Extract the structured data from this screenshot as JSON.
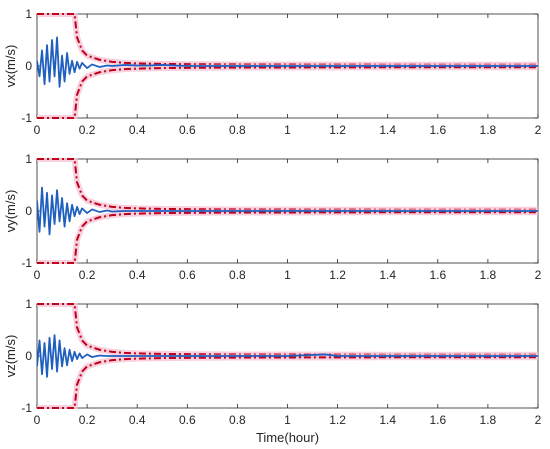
{
  "chart_data": [
    {
      "type": "line",
      "ylabel": "vx(m/s)",
      "xlabel": "",
      "xlim": [
        0,
        2
      ],
      "ylim": [
        -1,
        1
      ],
      "xticks": [
        "0",
        "0.2",
        "0.4",
        "0.6",
        "0.8",
        "1",
        "1.2",
        "1.4",
        "1.6",
        "1.8",
        "2"
      ],
      "yticks": [
        "-1",
        "0",
        "1"
      ],
      "grid": false,
      "series": [
        {
          "role": "error",
          "color": "#1f5fbf",
          "x": [
            0,
            0.01,
            0.02,
            0.03,
            0.04,
            0.05,
            0.06,
            0.07,
            0.08,
            0.09,
            0.1,
            0.11,
            0.12,
            0.13,
            0.14,
            0.15,
            0.16,
            0.17,
            0.18,
            0.2,
            0.22,
            0.25,
            0.28,
            0.3,
            0.35,
            0.4,
            0.45,
            0.5,
            0.55,
            0.6,
            0.8,
            1.0,
            1.2,
            1.4,
            1.6,
            1.8,
            2.0
          ],
          "y": [
            0.1,
            -0.2,
            0.3,
            -0.35,
            0.4,
            -0.3,
            0.5,
            -0.2,
            0.55,
            -0.4,
            0.2,
            -0.3,
            0.25,
            -0.15,
            0.1,
            -0.12,
            0.08,
            -0.05,
            0.06,
            -0.04,
            0.03,
            -0.02,
            0.01,
            0.0,
            0.02,
            0.01,
            0.01,
            0.02,
            0.01,
            0.0,
            0.0,
            0.0,
            0.0,
            0.0,
            0.0,
            0.0,
            0.0
          ]
        },
        {
          "role": "upper-bound",
          "color": "#c0001a",
          "x": [
            0,
            0.15,
            0.16,
            0.18,
            0.2,
            0.25,
            0.3,
            0.35,
            0.4,
            0.5,
            0.6,
            0.8,
            1.0,
            1.2,
            1.4,
            1.6,
            1.8,
            2.0
          ],
          "y": [
            1,
            1,
            0.55,
            0.3,
            0.2,
            0.12,
            0.08,
            0.06,
            0.05,
            0.04,
            0.035,
            0.03,
            0.028,
            0.026,
            0.025,
            0.025,
            0.024,
            0.024
          ]
        },
        {
          "role": "lower-bound",
          "color": "#c0001a",
          "x": [
            0,
            0.15,
            0.16,
            0.18,
            0.2,
            0.25,
            0.3,
            0.35,
            0.4,
            0.5,
            0.6,
            0.8,
            1.0,
            1.2,
            1.4,
            1.6,
            1.8,
            2.0
          ],
          "y": [
            -1,
            -1,
            -0.55,
            -0.3,
            -0.2,
            -0.12,
            -0.08,
            -0.06,
            -0.05,
            -0.04,
            -0.035,
            -0.03,
            -0.028,
            -0.026,
            -0.025,
            -0.025,
            -0.024,
            -0.024
          ]
        }
      ]
    },
    {
      "type": "line",
      "ylabel": "vy(m/s)",
      "xlabel": "",
      "xlim": [
        0,
        2
      ],
      "ylim": [
        -1,
        1
      ],
      "xticks": [
        "0",
        "0.2",
        "0.4",
        "0.6",
        "0.8",
        "1",
        "1.2",
        "1.4",
        "1.6",
        "1.8",
        "2"
      ],
      "yticks": [
        "-1",
        "0",
        "1"
      ],
      "grid": false,
      "series": [
        {
          "role": "error",
          "color": "#1f5fbf",
          "x": [
            0,
            0.01,
            0.02,
            0.03,
            0.04,
            0.05,
            0.06,
            0.07,
            0.08,
            0.09,
            0.1,
            0.11,
            0.12,
            0.13,
            0.14,
            0.15,
            0.16,
            0.17,
            0.18,
            0.2,
            0.22,
            0.25,
            0.28,
            0.3,
            0.35,
            0.4,
            0.5,
            0.6,
            0.8,
            1.0,
            1.2,
            1.4,
            1.6,
            1.8,
            2.0
          ],
          "y": [
            0.2,
            -0.4,
            0.45,
            -0.3,
            0.35,
            -0.45,
            0.3,
            -0.25,
            0.4,
            -0.2,
            0.25,
            -0.3,
            0.15,
            -0.2,
            0.12,
            -0.1,
            0.08,
            -0.06,
            0.05,
            -0.04,
            0.03,
            -0.02,
            0.01,
            -0.01,
            0.0,
            0.0,
            0.0,
            0.0,
            0.0,
            0.0,
            0.0,
            0.0,
            0.0,
            0.0,
            0.0
          ]
        },
        {
          "role": "upper-bound",
          "color": "#c0001a",
          "x": [
            0,
            0.15,
            0.16,
            0.18,
            0.2,
            0.25,
            0.3,
            0.35,
            0.4,
            0.5,
            0.6,
            0.8,
            1.0,
            1.2,
            1.4,
            1.6,
            1.8,
            2.0
          ],
          "y": [
            1,
            1,
            0.55,
            0.3,
            0.2,
            0.12,
            0.08,
            0.06,
            0.05,
            0.04,
            0.035,
            0.03,
            0.028,
            0.026,
            0.025,
            0.025,
            0.024,
            0.024
          ]
        },
        {
          "role": "lower-bound",
          "color": "#c0001a",
          "x": [
            0,
            0.15,
            0.16,
            0.18,
            0.2,
            0.25,
            0.3,
            0.35,
            0.4,
            0.5,
            0.6,
            0.8,
            1.0,
            1.2,
            1.4,
            1.6,
            1.8,
            2.0
          ],
          "y": [
            -1,
            -1,
            -0.55,
            -0.3,
            -0.2,
            -0.12,
            -0.08,
            -0.06,
            -0.05,
            -0.04,
            -0.035,
            -0.03,
            -0.028,
            -0.026,
            -0.025,
            -0.025,
            -0.024,
            -0.024
          ]
        }
      ]
    },
    {
      "type": "line",
      "ylabel": "vz(m/s)",
      "xlabel": "Time(hour)",
      "xlim": [
        0,
        2
      ],
      "ylim": [
        -1,
        1
      ],
      "xticks": [
        "0",
        "0.2",
        "0.4",
        "0.6",
        "0.8",
        "1",
        "1.2",
        "1.4",
        "1.6",
        "1.8",
        "2"
      ],
      "yticks": [
        "-1",
        "0",
        "1"
      ],
      "grid": false,
      "series": [
        {
          "role": "error",
          "color": "#1f5fbf",
          "x": [
            0,
            0.01,
            0.02,
            0.03,
            0.04,
            0.05,
            0.06,
            0.07,
            0.08,
            0.09,
            0.1,
            0.11,
            0.12,
            0.13,
            0.14,
            0.15,
            0.16,
            0.17,
            0.18,
            0.2,
            0.22,
            0.25,
            0.28,
            0.3,
            0.35,
            0.4,
            0.5,
            0.6,
            0.8,
            1.0,
            1.15,
            1.2,
            1.4,
            1.6,
            1.8,
            2.0
          ],
          "y": [
            -0.2,
            0.3,
            -0.35,
            0.25,
            -0.4,
            0.35,
            -0.25,
            0.4,
            -0.3,
            0.3,
            -0.2,
            0.15,
            -0.18,
            0.12,
            -0.1,
            0.08,
            -0.06,
            0.05,
            -0.04,
            0.03,
            -0.02,
            0.01,
            0.0,
            0.0,
            0.0,
            0.0,
            0.0,
            0.0,
            0.0,
            0.0,
            0.03,
            0.0,
            0.0,
            0.0,
            0.0,
            0.0
          ]
        },
        {
          "role": "upper-bound",
          "color": "#c0001a",
          "x": [
            0,
            0.15,
            0.16,
            0.18,
            0.2,
            0.25,
            0.3,
            0.35,
            0.4,
            0.5,
            0.6,
            0.8,
            1.0,
            1.2,
            1.4,
            1.6,
            1.8,
            2.0
          ],
          "y": [
            1,
            1,
            0.55,
            0.3,
            0.2,
            0.12,
            0.08,
            0.06,
            0.05,
            0.04,
            0.035,
            0.03,
            0.028,
            0.026,
            0.025,
            0.025,
            0.024,
            0.024
          ]
        },
        {
          "role": "lower-bound",
          "color": "#c0001a",
          "x": [
            0,
            0.15,
            0.16,
            0.18,
            0.2,
            0.25,
            0.3,
            0.35,
            0.4,
            0.5,
            0.6,
            0.8,
            1.0,
            1.2,
            1.4,
            1.6,
            1.8,
            2.0
          ],
          "y": [
            -1,
            -1,
            -0.55,
            -0.3,
            -0.2,
            -0.12,
            -0.08,
            -0.06,
            -0.05,
            -0.04,
            -0.035,
            -0.03,
            -0.028,
            -0.026,
            -0.025,
            -0.025,
            -0.024,
            -0.024
          ]
        }
      ]
    }
  ]
}
